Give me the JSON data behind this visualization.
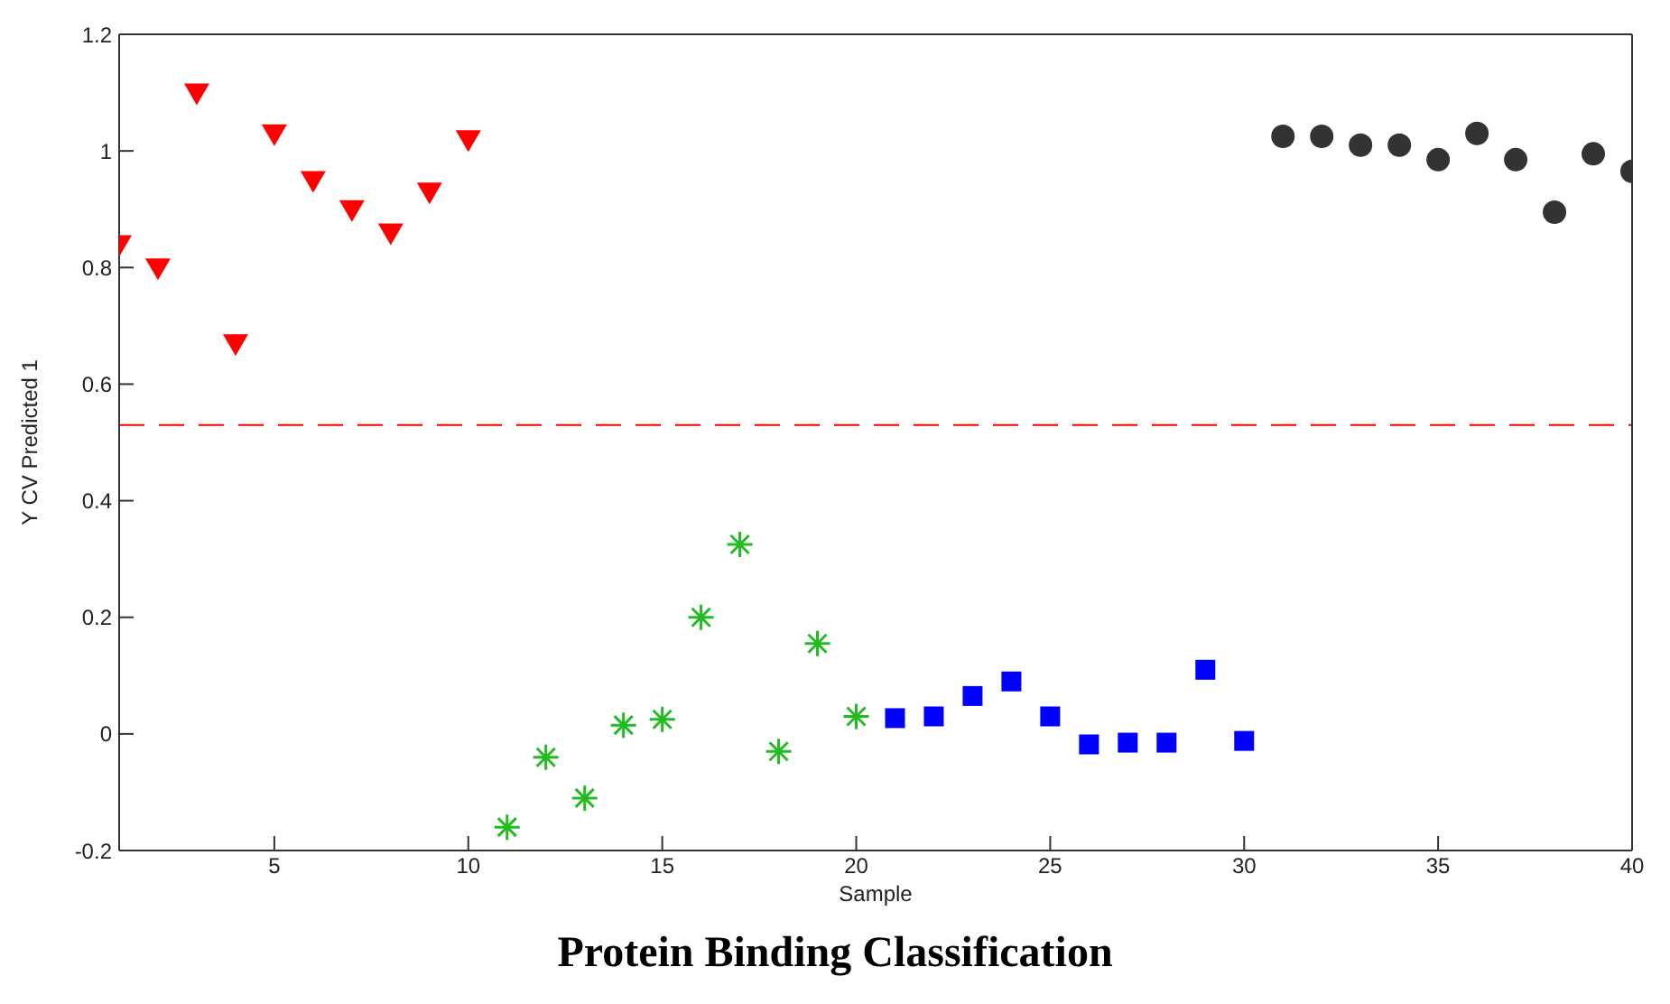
{
  "chart_data": {
    "type": "scatter",
    "title": "Protein Binding Classification",
    "xlabel": "Sample",
    "ylabel": "Y CV Predicted 1",
    "xlim": [
      1,
      40
    ],
    "xticks": [
      5,
      10,
      15,
      20,
      25,
      30,
      35,
      40
    ],
    "ylim": [
      -0.2,
      1.2
    ],
    "yticks": [
      -0.2,
      0,
      0.2,
      0.4,
      0.6,
      0.8,
      1,
      1.2
    ],
    "legend": false,
    "series": [
      {
        "color": "#ff0000",
        "marker": "triangle",
        "x": [
          1,
          2,
          3,
          4,
          5,
          6,
          7,
          8,
          9,
          10
        ],
        "values": [
          0.84,
          0.8,
          1.1,
          0.67,
          1.03,
          0.95,
          0.9,
          0.86,
          0.93,
          1.02
        ]
      },
      {
        "color": "#22bb22",
        "marker": "cross",
        "x": [
          11,
          12,
          13,
          14,
          15,
          16,
          17,
          18,
          19,
          20
        ],
        "values": [
          -0.16,
          -0.04,
          -0.11,
          0.015,
          0.025,
          0.2,
          0.325,
          -0.03,
          0.155,
          0.03
        ]
      },
      {
        "color": "#0000ff",
        "marker": "square",
        "x": [
          21,
          22,
          23,
          24,
          25,
          26,
          27,
          28,
          29,
          30
        ],
        "values": [
          0.027,
          0.03,
          0.065,
          0.09,
          0.03,
          -0.018,
          -0.015,
          -0.015,
          0.11,
          -0.012
        ]
      },
      {
        "color": "#333333",
        "marker": "circle",
        "x": [
          31,
          32,
          33,
          34,
          35,
          36,
          37,
          38,
          39,
          40
        ],
        "values": [
          1.025,
          1.025,
          1.01,
          1.01,
          0.985,
          1.03,
          0.985,
          0.895,
          0.995,
          0.965
        ]
      }
    ],
    "ref_lines": [
      {
        "axis": "y",
        "value": 0.53,
        "color": "#ff0000",
        "line_style": "dashed"
      }
    ]
  }
}
